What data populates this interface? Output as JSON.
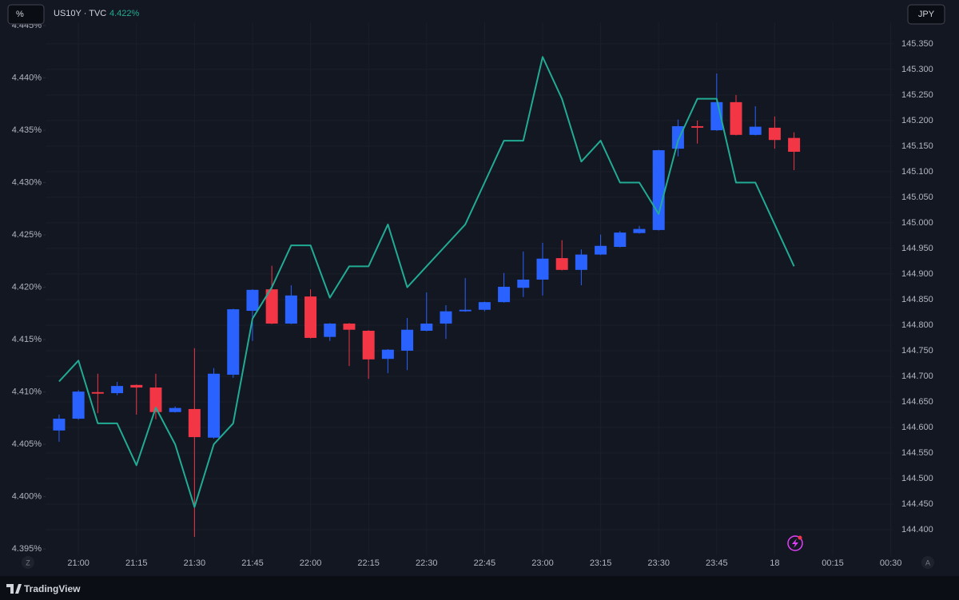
{
  "ui": {
    "left_button": "%",
    "right_button": "JPY",
    "scale_buttons": [
      "Z",
      "A"
    ],
    "brand": "TradingView"
  },
  "chart_data": {
    "type": "candlestick",
    "legend": {
      "symbol": "US10Y · TVC",
      "value": "4.422%"
    },
    "x": [
      1255,
      1260,
      1265,
      1270,
      1275,
      1280,
      1285,
      1290,
      1295,
      1300,
      1305,
      1310,
      1315,
      1320,
      1325,
      1330,
      1335,
      1340,
      1345,
      1350,
      1355,
      1360,
      1365,
      1370,
      1375,
      1380,
      1385,
      1390,
      1395,
      1400,
      1405,
      1410,
      1415,
      1420,
      1425,
      1430,
      1435,
      1440,
      1445
    ],
    "xlim": [
      1251.5,
      1470.7
    ],
    "xticks": [
      {
        "value": 1260,
        "label": "21:00"
      },
      {
        "value": 1275,
        "label": "21:15"
      },
      {
        "value": 1290,
        "label": "21:30"
      },
      {
        "value": 1305,
        "label": "21:45"
      },
      {
        "value": 1320,
        "label": "22:00"
      },
      {
        "value": 1335,
        "label": "22:15"
      },
      {
        "value": 1350,
        "label": "22:30"
      },
      {
        "value": 1365,
        "label": "22:45"
      },
      {
        "value": 1380,
        "label": "23:00"
      },
      {
        "value": 1395,
        "label": "23:15"
      },
      {
        "value": 1410,
        "label": "23:30"
      },
      {
        "value": 1425,
        "label": "23:45"
      },
      {
        "value": 1440,
        "label": "18"
      },
      {
        "value": 1455,
        "label": "00:15"
      },
      {
        "value": 1470,
        "label": "00:30"
      }
    ],
    "ylim": [
      4.3944,
      4.4453
    ],
    "yticks": [
      {
        "value": 4.395,
        "label": "4.395%"
      },
      {
        "value": 4.4,
        "label": "4.400%"
      },
      {
        "value": 4.405,
        "label": "4.405%"
      },
      {
        "value": 4.41,
        "label": "4.410%"
      },
      {
        "value": 4.415,
        "label": "4.415%"
      },
      {
        "value": 4.42,
        "label": "4.420%"
      },
      {
        "value": 4.425,
        "label": "4.425%"
      },
      {
        "value": 4.43,
        "label": "4.430%"
      },
      {
        "value": 4.435,
        "label": "4.435%"
      },
      {
        "value": 4.44,
        "label": "4.440%"
      },
      {
        "value": 4.445,
        "label": "4.445%"
      }
    ],
    "y2lim": [
      144.35,
      145.392
    ],
    "y2ticks": [
      {
        "value": 144.4,
        "label": "144.400"
      },
      {
        "value": 144.45,
        "label": "144.450"
      },
      {
        "value": 144.5,
        "label": "144.500"
      },
      {
        "value": 144.55,
        "label": "144.550"
      },
      {
        "value": 144.6,
        "label": "144.600"
      },
      {
        "value": 144.65,
        "label": "144.650"
      },
      {
        "value": 144.7,
        "label": "144.700"
      },
      {
        "value": 144.75,
        "label": "144.750"
      },
      {
        "value": 144.8,
        "label": "144.800"
      },
      {
        "value": 144.85,
        "label": "144.850"
      },
      {
        "value": 144.9,
        "label": "144.900"
      },
      {
        "value": 144.95,
        "label": "144.950"
      },
      {
        "value": 145.0,
        "label": "145.000"
      },
      {
        "value": 145.05,
        "label": "145.050"
      },
      {
        "value": 145.1,
        "label": "145.100"
      },
      {
        "value": 145.15,
        "label": "145.150"
      },
      {
        "value": 145.2,
        "label": "145.200"
      },
      {
        "value": 145.25,
        "label": "145.250"
      },
      {
        "value": 145.3,
        "label": "145.300"
      },
      {
        "value": 145.35,
        "label": "145.350"
      }
    ],
    "grid": true,
    "candles": {
      "axis": "y2",
      "up_color": "#2962ff",
      "down_color": "#f23645",
      "open": [
        144.594,
        144.617,
        144.669,
        144.667,
        144.683,
        144.678,
        144.63,
        144.636,
        144.58,
        144.703,
        144.828,
        144.87,
        144.803,
        144.856,
        144.777,
        144.803,
        144.789,
        144.734,
        144.75,
        144.789,
        144.803,
        144.827,
        144.83,
        144.845,
        144.873,
        144.889,
        144.931,
        144.908,
        144.938,
        144.953,
        144.98,
        144.986,
        145.145,
        145.189,
        145.181,
        145.236,
        145.172,
        145.186,
        145.166
      ],
      "high": [
        144.625,
        144.673,
        144.705,
        144.689,
        144.684,
        144.705,
        144.641,
        144.755,
        144.716,
        144.832,
        144.87,
        144.916,
        144.878,
        144.87,
        144.804,
        144.804,
        144.79,
        144.753,
        144.814,
        144.864,
        144.839,
        144.892,
        144.846,
        144.902,
        144.944,
        144.961,
        144.966,
        144.948,
        144.977,
        144.984,
        144.994,
        145.143,
        145.202,
        145.2,
        145.292,
        145.25,
        145.228,
        145.208,
        145.177
      ],
      "low": [
        144.572,
        144.615,
        144.628,
        144.663,
        144.625,
        144.616,
        144.629,
        144.386,
        144.578,
        144.697,
        144.769,
        144.802,
        144.802,
        144.774,
        144.769,
        144.72,
        144.695,
        144.706,
        144.712,
        144.788,
        144.773,
        144.826,
        144.827,
        144.844,
        144.855,
        144.858,
        144.907,
        144.878,
        144.937,
        144.952,
        144.979,
        144.985,
        145.13,
        145.155,
        145.18,
        145.171,
        145.171,
        145.145,
        145.103
      ],
      "close": [
        144.617,
        144.67,
        144.666,
        144.681,
        144.678,
        144.63,
        144.638,
        144.581,
        144.705,
        144.831,
        144.869,
        144.803,
        144.858,
        144.775,
        144.803,
        144.791,
        144.733,
        144.752,
        144.791,
        144.803,
        144.827,
        144.83,
        144.845,
        144.875,
        144.889,
        144.93,
        144.908,
        144.938,
        144.955,
        144.981,
        144.988,
        145.142,
        145.189,
        145.186,
        145.236,
        145.172,
        145.188,
        145.162,
        145.139
      ]
    },
    "series": [
      {
        "name": "US10Y · TVC",
        "color": "#22ab94",
        "axis": "y",
        "values": [
          4.411,
          4.413,
          4.407,
          4.407,
          4.403,
          4.4085,
          4.405,
          4.399,
          4.405,
          4.407,
          4.417,
          4.42,
          4.424,
          4.424,
          4.419,
          4.422,
          4.422,
          4.426,
          4.42,
          4.422,
          4.424,
          4.426,
          4.43,
          4.434,
          4.434,
          4.442,
          4.438,
          4.432,
          4.434,
          4.43,
          4.43,
          4.427,
          4.434,
          4.438,
          4.438,
          4.43,
          4.43,
          4.426,
          4.422
        ]
      }
    ]
  }
}
